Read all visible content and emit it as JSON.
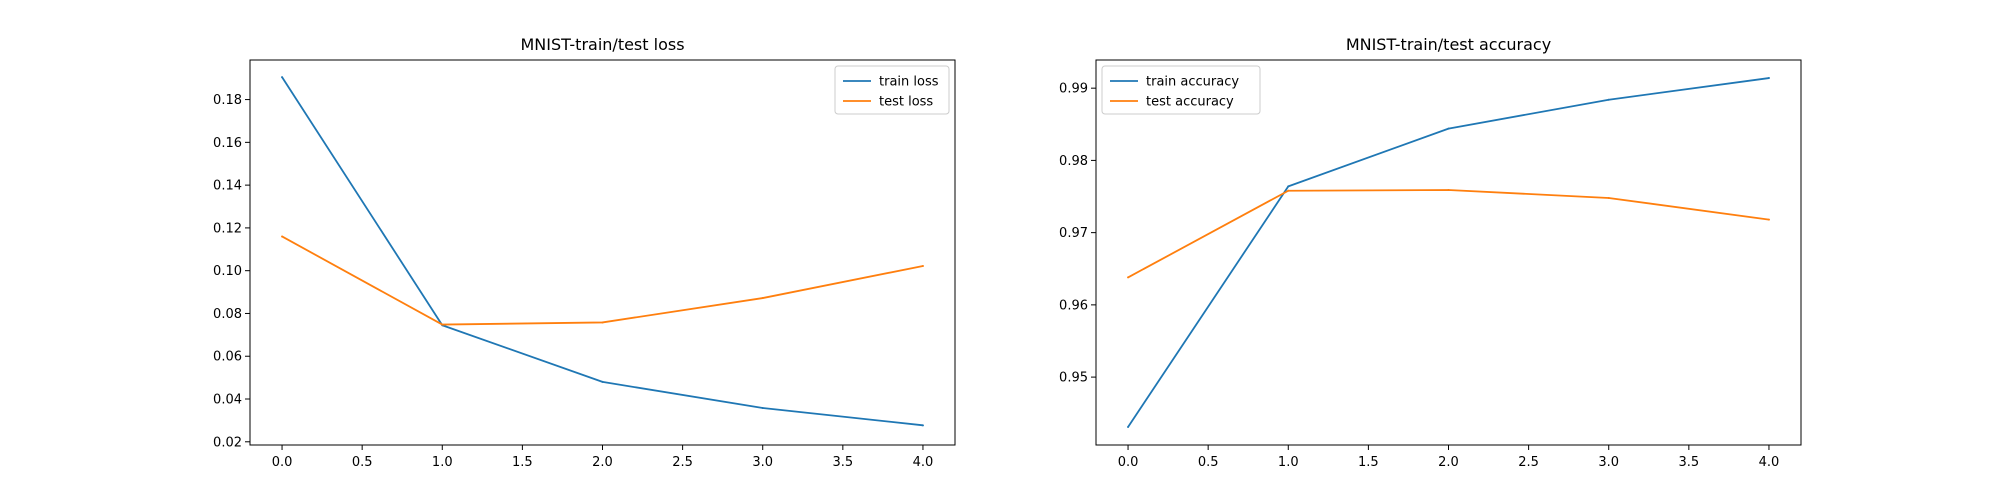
{
  "chart_data": [
    {
      "type": "line",
      "title": "MNIST-train/test loss",
      "xlabel": "",
      "ylabel": "",
      "xlim": [
        -0.2,
        4.2
      ],
      "ylim": [
        0.0185,
        0.1985
      ],
      "xticks": [
        0.0,
        0.5,
        1.0,
        1.5,
        2.0,
        2.5,
        3.0,
        3.5,
        4.0
      ],
      "xtick_labels": [
        "0.0",
        "0.5",
        "1.0",
        "1.5",
        "2.0",
        "2.5",
        "3.0",
        "3.5",
        "4.0"
      ],
      "yticks": [
        0.02,
        0.04,
        0.06,
        0.08,
        0.1,
        0.12,
        0.14,
        0.16,
        0.18
      ],
      "ytick_labels": [
        "0.02",
        "0.04",
        "0.06",
        "0.08",
        "0.10",
        "0.12",
        "0.14",
        "0.16",
        "0.18"
      ],
      "grid": false,
      "legend_loc": "upper right",
      "x": [
        0,
        1,
        2,
        3,
        4
      ],
      "series": [
        {
          "name": "train loss",
          "color": "#1f77b4",
          "values": [
            0.1905,
            0.0745,
            0.048,
            0.0358,
            0.0277
          ]
        },
        {
          "name": "test loss",
          "color": "#ff7f0e",
          "values": [
            0.116,
            0.0748,
            0.0758,
            0.0872,
            0.1022
          ]
        }
      ]
    },
    {
      "type": "line",
      "title": "MNIST-train/test accuracy",
      "xlabel": "",
      "ylabel": "",
      "xlim": [
        -0.2,
        4.2
      ],
      "ylim": [
        0.9406,
        0.9939
      ],
      "xticks": [
        0.0,
        0.5,
        1.0,
        1.5,
        2.0,
        2.5,
        3.0,
        3.5,
        4.0
      ],
      "xtick_labels": [
        "0.0",
        "0.5",
        "1.0",
        "1.5",
        "2.0",
        "2.5",
        "3.0",
        "3.5",
        "4.0"
      ],
      "yticks": [
        0.95,
        0.96,
        0.97,
        0.98,
        0.99
      ],
      "ytick_labels": [
        "0.95",
        "0.96",
        "0.97",
        "0.98",
        "0.99"
      ],
      "grid": false,
      "legend_loc": "upper left",
      "x": [
        0,
        1,
        2,
        3,
        4
      ],
      "series": [
        {
          "name": "train accuracy",
          "color": "#1f77b4",
          "values": [
            0.9431,
            0.9764,
            0.9844,
            0.9884,
            0.9914
          ]
        },
        {
          "name": "test accuracy",
          "color": "#ff7f0e",
          "values": [
            0.9638,
            0.9758,
            0.9759,
            0.9748,
            0.9718
          ]
        }
      ]
    }
  ]
}
